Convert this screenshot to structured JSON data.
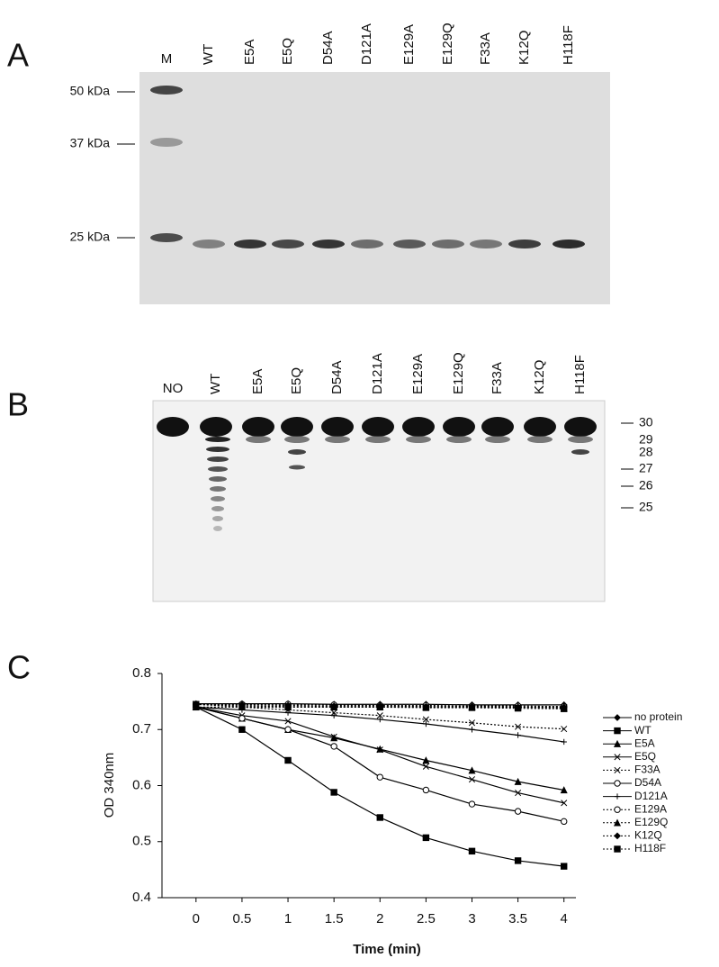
{
  "panel_a": {
    "label": "A",
    "lanes": [
      "M",
      "WT",
      "E5A",
      "E5Q",
      "D54A",
      "D121A",
      "E129A",
      "E129Q",
      "F33A",
      "K12Q",
      "H118F"
    ],
    "markers": [
      "50 kDa",
      "37 kDa",
      "25 kDa"
    ]
  },
  "panel_b": {
    "label": "B",
    "lanes": [
      "NO",
      "WT",
      "E5A",
      "E5Q",
      "D54A",
      "D121A",
      "E129A",
      "E129Q",
      "F33A",
      "K12Q",
      "H118F"
    ],
    "markers": [
      "30",
      "29",
      "28",
      "27",
      "26",
      "25"
    ]
  },
  "panel_c": {
    "label": "C"
  },
  "chart_data": {
    "type": "line",
    "ylabel": "OD 340nm",
    "xlabel": "Time (min)",
    "x": [
      0,
      0.5,
      1,
      1.5,
      2,
      2.5,
      3,
      3.5,
      4
    ],
    "xlim": [
      -0.37,
      4.13
    ],
    "xticks": [
      0,
      0.5,
      1,
      1.5,
      2,
      2.5,
      3,
      3.5,
      4
    ],
    "ylim": [
      0.4,
      0.8
    ],
    "yticks": [
      0.4,
      0.5,
      0.6,
      0.7,
      0.8
    ],
    "series": [
      {
        "name": "no protein",
        "color": "#000000",
        "marker": "diamond",
        "dash": false,
        "values": [
          0.746,
          0.746,
          0.746,
          0.745,
          0.745,
          0.745,
          0.744,
          0.744,
          0.744
        ]
      },
      {
        "name": "WT",
        "color": "#000000",
        "marker": "square",
        "dash": false,
        "values": [
          0.74,
          0.7,
          0.645,
          0.588,
          0.543,
          0.507,
          0.483,
          0.466,
          0.456
        ]
      },
      {
        "name": "E5A",
        "color": "#000000",
        "marker": "triangle",
        "dash": false,
        "values": [
          0.74,
          0.72,
          0.7,
          0.685,
          0.665,
          0.645,
          0.627,
          0.607,
          0.592
        ]
      },
      {
        "name": "E5Q",
        "color": "#000000",
        "marker": "x",
        "dash": false,
        "values": [
          0.74,
          0.725,
          0.715,
          0.687,
          0.664,
          0.634,
          0.611,
          0.587,
          0.569
        ]
      },
      {
        "name": "F33A",
        "color": "#000000",
        "marker": "x",
        "dash": true,
        "values": [
          0.745,
          0.74,
          0.735,
          0.73,
          0.725,
          0.718,
          0.712,
          0.705,
          0.701
        ]
      },
      {
        "name": "D54A",
        "color": "#000000",
        "marker": "circle",
        "dash": false,
        "values": [
          0.74,
          0.72,
          0.7,
          0.67,
          0.615,
          0.592,
          0.567,
          0.554,
          0.536
        ]
      },
      {
        "name": "D121A",
        "color": "#000000",
        "marker": "plus",
        "dash": false,
        "values": [
          0.74,
          0.735,
          0.73,
          0.725,
          0.718,
          0.71,
          0.7,
          0.69,
          0.678
        ]
      },
      {
        "name": "E129A",
        "color": "#000000",
        "marker": "circle",
        "dash": true,
        "values": [
          0.745,
          0.745,
          0.745,
          0.744,
          0.743,
          0.743,
          0.742,
          0.742,
          0.741
        ]
      },
      {
        "name": "E129Q",
        "color": "#000000",
        "marker": "triangle",
        "dash": true,
        "values": [
          0.74,
          0.74,
          0.74,
          0.74,
          0.74,
          0.74,
          0.74,
          0.74,
          0.738
        ]
      },
      {
        "name": "K12Q",
        "color": "#000000",
        "marker": "diamond",
        "dash": true,
        "values": [
          0.745,
          0.744,
          0.743,
          0.742,
          0.742,
          0.741,
          0.741,
          0.74,
          0.74
        ]
      },
      {
        "name": "H118F",
        "color": "#000000",
        "marker": "square",
        "dash": true,
        "values": [
          0.745,
          0.742,
          0.741,
          0.74,
          0.74,
          0.739,
          0.739,
          0.738,
          0.737
        ]
      }
    ]
  }
}
